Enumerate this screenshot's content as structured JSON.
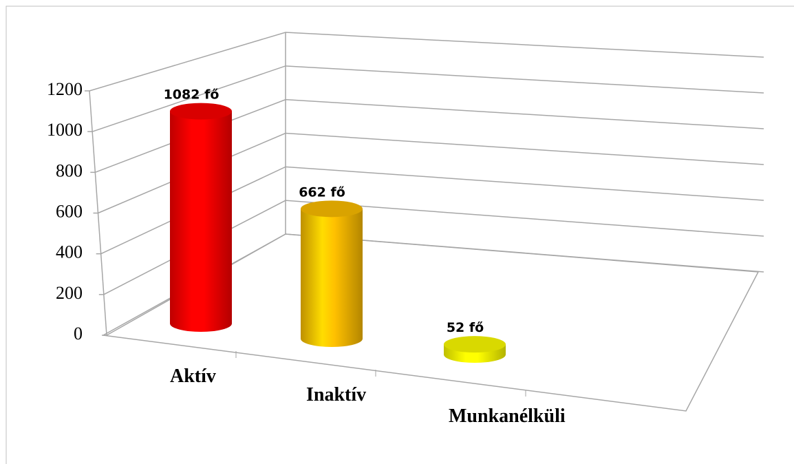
{
  "chart_data": {
    "type": "bar3d",
    "categories": [
      "Aktív",
      "Inaktív",
      "Munkanélküli"
    ],
    "values": [
      1082,
      662,
      52
    ],
    "value_labels": [
      "1082 fő",
      "662 fő",
      "52 fő"
    ],
    "colors": [
      "#ff0000",
      "#ffc000",
      "#ffff00"
    ],
    "ylim": [
      0,
      1200
    ],
    "yticks": [
      0,
      200,
      400,
      600,
      800,
      1000,
      1200
    ],
    "grid": true
  }
}
